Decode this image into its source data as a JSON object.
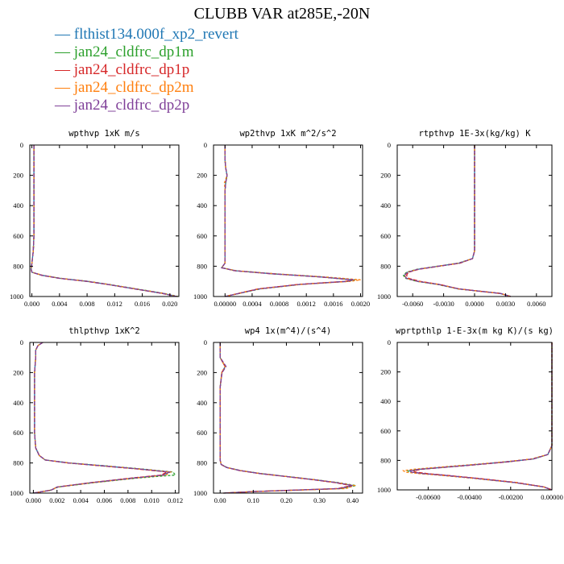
{
  "title": "CLUBB VAR at285E,-20N",
  "legend": [
    {
      "label": "flthist134.000f_xp2_revert",
      "color": "#1f77b4"
    },
    {
      "label": "jan24_cldfrc_dp1m",
      "color": "#2ca02c"
    },
    {
      "label": "jan24_cldfrc_dp1p",
      "color": "#d62728"
    },
    {
      "label": "jan24_cldfrc_dp2m",
      "color": "#ff7f0e"
    },
    {
      "label": "jan24_cldfrc_dp2p",
      "color": "#7f3f98"
    }
  ],
  "chart_data": [
    {
      "type": "line",
      "title": "wpthvp  1xK m/s",
      "xlim": [
        -0.0003,
        0.0213
      ],
      "xticks": [
        0.0,
        0.004,
        0.008,
        0.012,
        0.016,
        0.02
      ],
      "xtick_labels": [
        "0.000",
        "0.004",
        "0.008",
        "0.012",
        "0.016",
        "0.020"
      ],
      "ylim": [
        0,
        1000
      ],
      "yticks": [
        0,
        200,
        400,
        600,
        800,
        1000
      ],
      "y": [
        0,
        100,
        200,
        300,
        400,
        500,
        600,
        700,
        780,
        820,
        840,
        860,
        880,
        900,
        920,
        950,
        980,
        1000
      ],
      "series": [
        {
          "color": "#1f77b4",
          "x": [
            0.0003,
            0.0003,
            0.0003,
            0.0003,
            0.0003,
            0.0003,
            0.0003,
            0.0002,
            0.0,
            -0.0001,
            0.0,
            0.0015,
            0.004,
            0.008,
            0.011,
            0.015,
            0.019,
            0.021
          ]
        },
        {
          "color": "#2ca02c",
          "x": [
            0.0003,
            0.0003,
            0.0003,
            0.0003,
            0.0003,
            0.0003,
            0.0003,
            0.0002,
            0.0,
            -0.0001,
            0.0,
            0.0015,
            0.0042,
            0.0082,
            0.0112,
            0.0152,
            0.0192,
            0.0212
          ]
        },
        {
          "color": "#d62728",
          "x": [
            0.0003,
            0.0003,
            0.0003,
            0.0003,
            0.0003,
            0.0003,
            0.0003,
            0.0002,
            0.0,
            -0.0001,
            0.0,
            0.0014,
            0.0039,
            0.0079,
            0.0109,
            0.0149,
            0.0189,
            0.0209
          ]
        },
        {
          "color": "#ff7f0e",
          "x": [
            0.0003,
            0.0003,
            0.0003,
            0.0003,
            0.0003,
            0.0003,
            0.0003,
            0.0002,
            0.0,
            -0.0001,
            0.0,
            0.0016,
            0.0041,
            0.0081,
            0.0111,
            0.0151,
            0.0191,
            0.0211
          ]
        },
        {
          "color": "#7f3f98",
          "x": [
            0.0003,
            0.0003,
            0.0003,
            0.0003,
            0.0003,
            0.0003,
            0.0003,
            0.0002,
            0.0,
            -0.0001,
            0.0,
            0.0015,
            0.004,
            0.008,
            0.011,
            0.015,
            0.019,
            0.021
          ]
        }
      ]
    },
    {
      "type": "line",
      "title": "wp2thvp  1xK m^2/s^2",
      "xlim": [
        -0.00017,
        0.00203
      ],
      "xticks": [
        0.0,
        0.0004,
        0.0008,
        0.0012,
        0.0016,
        0.002
      ],
      "xtick_labels": [
        "0.00000",
        "0.0004",
        "0.0008",
        "0.0012",
        "0.0016",
        "0.0020"
      ],
      "ylim": [
        0,
        1000
      ],
      "yticks": [
        0,
        200,
        400,
        600,
        800,
        1000
      ],
      "y": [
        0,
        100,
        150,
        200,
        250,
        300,
        400,
        500,
        600,
        700,
        780,
        810,
        830,
        850,
        870,
        890,
        900,
        920,
        950,
        1000
      ],
      "series": [
        {
          "color": "#1f77b4",
          "x": [
            0.0,
            0.0,
            1e-05,
            3e-05,
            1e-05,
            0.0,
            0.0,
            0.0,
            0.0,
            0.0,
            0.0,
            -5e-05,
            0.00015,
            0.0007,
            0.0014,
            0.0019,
            0.0018,
            0.0011,
            0.0005,
            0.0
          ]
        },
        {
          "color": "#2ca02c",
          "x": [
            0.0,
            0.0,
            1e-05,
            3e-05,
            1e-05,
            0.0,
            0.0,
            0.0,
            0.0,
            0.0,
            0.0,
            -5e-05,
            0.00016,
            0.00072,
            0.00142,
            0.00192,
            0.00182,
            0.00112,
            0.00052,
            0.0
          ]
        },
        {
          "color": "#d62728",
          "x": [
            0.0,
            0.0,
            1e-05,
            3e-05,
            1e-05,
            0.0,
            0.0,
            0.0,
            0.0,
            0.0,
            0.0,
            -5e-05,
            0.00014,
            0.00068,
            0.00138,
            0.00188,
            0.00178,
            0.00108,
            0.00048,
            0.0
          ]
        },
        {
          "color": "#ff7f0e",
          "x": [
            0.0,
            0.0,
            1e-05,
            3e-05,
            -1e-05,
            0.0,
            0.0,
            0.0,
            0.0,
            0.0,
            0.0,
            -5e-05,
            0.00017,
            0.00074,
            0.00146,
            0.002,
            0.00185,
            0.00112,
            0.0005,
            0.0
          ]
        },
        {
          "color": "#7f3f98",
          "x": [
            0.0,
            0.0,
            1e-05,
            3e-05,
            1e-05,
            0.0,
            0.0,
            0.0,
            0.0,
            0.0,
            0.0,
            -5e-05,
            0.00015,
            0.0007,
            0.0014,
            0.0019,
            0.0018,
            0.0011,
            0.0005,
            0.0
          ]
        }
      ]
    },
    {
      "type": "line",
      "title": "rtpthvp  1E-3x(kg/kg) K",
      "xlim": [
        -0.0075,
        0.0075
      ],
      "xticks": [
        -0.006,
        -0.003,
        0.0,
        0.003,
        0.006
      ],
      "xtick_labels": [
        "-0.0060",
        "-0.0030",
        "0.0000",
        "0.0030",
        "0.0060"
      ],
      "ylim": [
        0,
        1000
      ],
      "yticks": [
        0,
        200,
        400,
        600,
        800,
        1000
      ],
      "y": [
        0,
        200,
        400,
        600,
        700,
        750,
        780,
        800,
        820,
        840,
        860,
        880,
        900,
        920,
        950,
        980,
        1000
      ],
      "series": [
        {
          "color": "#1f77b4",
          "x": [
            0.0,
            0.0,
            0.0,
            0.0,
            0.0,
            -0.0002,
            -0.0015,
            -0.0035,
            -0.0055,
            -0.0065,
            -0.0068,
            -0.0066,
            -0.0055,
            -0.0035,
            -0.0015,
            0.0025,
            0.0035
          ]
        },
        {
          "color": "#2ca02c",
          "x": [
            0.0,
            0.0,
            0.0,
            0.0,
            0.0,
            -0.0002,
            -0.0016,
            -0.0036,
            -0.0056,
            -0.0066,
            -0.0069,
            -0.0067,
            -0.0056,
            -0.0036,
            -0.0016,
            0.0025,
            0.0035
          ]
        },
        {
          "color": "#d62728",
          "x": [
            0.0,
            0.0,
            0.0,
            0.0,
            0.0,
            -0.0002,
            -0.0014,
            -0.0034,
            -0.0054,
            -0.0064,
            -0.0066,
            -0.0064,
            -0.0053,
            -0.0034,
            -0.0015,
            0.0025,
            0.0035
          ]
        },
        {
          "color": "#ff7f0e",
          "x": [
            0.0,
            0.0,
            0.0,
            0.0,
            0.0,
            -0.0002,
            -0.0015,
            -0.0035,
            -0.0055,
            -0.0065,
            -0.0068,
            -0.0066,
            -0.0055,
            -0.0035,
            -0.0015,
            0.0025,
            0.0035
          ]
        },
        {
          "color": "#7f3f98",
          "x": [
            0.0,
            0.0,
            0.0,
            0.0,
            0.0,
            -0.0002,
            -0.0015,
            -0.0035,
            -0.0055,
            -0.0065,
            -0.0068,
            -0.0066,
            -0.0055,
            -0.0035,
            -0.0015,
            0.0025,
            0.0035
          ]
        }
      ]
    },
    {
      "type": "line",
      "title": "thlpthvp  1xK^2",
      "xlim": [
        -0.0003,
        0.0123
      ],
      "xticks": [
        0.0,
        0.002,
        0.004,
        0.006,
        0.008,
        0.01,
        0.012
      ],
      "xtick_labels": [
        "0.000",
        "0.002",
        "0.004",
        "0.006",
        "0.008",
        "0.010",
        "0.012"
      ],
      "ylim": [
        0,
        1000
      ],
      "yticks": [
        0,
        200,
        400,
        600,
        800,
        1000
      ],
      "y": [
        0,
        20,
        50,
        100,
        200,
        300,
        400,
        500,
        600,
        700,
        750,
        780,
        800,
        820,
        840,
        860,
        880,
        900,
        930,
        960,
        980,
        1000
      ],
      "series": [
        {
          "color": "#1f77b4",
          "x": [
            0.0008,
            0.0004,
            0.0002,
            0.0002,
            0.0001,
            0.0001,
            0.0001,
            0.0001,
            0.0001,
            0.0002,
            0.0005,
            0.001,
            0.003,
            0.006,
            0.009,
            0.0115,
            0.011,
            0.0085,
            0.005,
            0.002,
            0.0015,
            0.0
          ]
        },
        {
          "color": "#2ca02c",
          "x": [
            0.0008,
            0.0004,
            0.0002,
            0.0002,
            0.0001,
            0.0001,
            0.0001,
            0.0001,
            0.0001,
            0.0002,
            0.0005,
            0.001,
            0.0031,
            0.0062,
            0.0092,
            0.0118,
            0.012,
            0.0088,
            0.0052,
            0.0021,
            0.0015,
            0.0
          ]
        },
        {
          "color": "#d62728",
          "x": [
            0.0008,
            0.0004,
            0.0002,
            0.0002,
            0.0001,
            0.0001,
            0.0001,
            0.0001,
            0.0001,
            0.0002,
            0.0005,
            0.001,
            0.0029,
            0.0058,
            0.0088,
            0.0113,
            0.0108,
            0.0083,
            0.0049,
            0.002,
            0.0015,
            0.0
          ]
        },
        {
          "color": "#ff7f0e",
          "x": [
            0.0008,
            0.0004,
            0.0002,
            0.0002,
            0.0001,
            0.0001,
            0.0001,
            0.0001,
            0.0001,
            0.0002,
            0.0005,
            0.001,
            0.003,
            0.006,
            0.009,
            0.0116,
            0.0112,
            0.0086,
            0.0051,
            0.002,
            0.0015,
            0.0
          ]
        },
        {
          "color": "#7f3f98",
          "x": [
            0.0008,
            0.0004,
            0.0002,
            0.0002,
            0.0001,
            0.0001,
            0.0001,
            0.0001,
            0.0001,
            0.0002,
            0.0005,
            0.001,
            0.003,
            0.006,
            0.009,
            0.0115,
            0.011,
            0.0085,
            0.005,
            0.002,
            0.0015,
            0.0
          ]
        }
      ]
    },
    {
      "type": "line",
      "title": "wp4  1x(m^4)/(s^4)",
      "xlim": [
        -0.02,
        0.43
      ],
      "xticks": [
        0.0,
        0.1,
        0.2,
        0.3,
        0.4
      ],
      "xtick_labels": [
        "0.00",
        "0.10",
        "0.20",
        "0.30",
        "0.40"
      ],
      "ylim": [
        0,
        1000
      ],
      "yticks": [
        0,
        200,
        400,
        600,
        800,
        1000
      ],
      "y": [
        0,
        100,
        140,
        160,
        200,
        300,
        400,
        500,
        600,
        700,
        780,
        810,
        830,
        850,
        870,
        890,
        910,
        930,
        950,
        970,
        990,
        1000
      ],
      "series": [
        {
          "color": "#1f77b4",
          "x": [
            0.0,
            0.0,
            0.01,
            0.015,
            0.005,
            0.0,
            0.0,
            0.0,
            0.0,
            0.0,
            0.0,
            0.003,
            0.02,
            0.06,
            0.12,
            0.2,
            0.28,
            0.35,
            0.4,
            0.36,
            0.1,
            0.01
          ]
        },
        {
          "color": "#2ca02c",
          "x": [
            0.0,
            0.0,
            0.01,
            0.015,
            0.005,
            0.0,
            0.0,
            0.0,
            0.0,
            0.0,
            0.0,
            0.003,
            0.021,
            0.062,
            0.122,
            0.203,
            0.283,
            0.355,
            0.41,
            0.37,
            0.1,
            0.01
          ]
        },
        {
          "color": "#d62728",
          "x": [
            0.0,
            0.0,
            0.01,
            0.015,
            0.005,
            0.0,
            0.0,
            0.0,
            0.0,
            0.0,
            0.0,
            0.003,
            0.019,
            0.058,
            0.118,
            0.197,
            0.276,
            0.345,
            0.395,
            0.355,
            0.1,
            0.01
          ]
        },
        {
          "color": "#ff7f0e",
          "x": [
            0.0,
            0.0,
            0.01,
            0.015,
            0.005,
            0.0,
            0.0,
            0.0,
            0.0,
            0.0,
            0.0,
            0.003,
            0.02,
            0.061,
            0.121,
            0.201,
            0.281,
            0.352,
            0.405,
            0.38,
            0.1,
            0.01
          ]
        },
        {
          "color": "#7f3f98",
          "x": [
            0.0,
            0.0,
            0.012,
            0.018,
            0.006,
            0.0,
            0.0,
            0.0,
            0.0,
            0.0,
            0.0,
            0.003,
            0.02,
            0.06,
            0.12,
            0.2,
            0.28,
            0.35,
            0.4,
            0.36,
            0.1,
            0.01
          ]
        }
      ]
    },
    {
      "type": "line",
      "title": "wprtpthlp  1-E-3x(m kg K)/(s kg)",
      "xlim": [
        -0.0075,
        0.0
      ],
      "xticks": [
        -0.006,
        -0.004,
        -0.002,
        0.0
      ],
      "xtick_labels": [
        "-0.00600",
        "-0.00400",
        "-0.00200",
        "0.00000"
      ],
      "ylim": [
        0,
        1000
      ],
      "yticks": [
        0,
        200,
        400,
        600,
        800,
        1000
      ],
      "y": [
        0,
        200,
        400,
        600,
        700,
        760,
        790,
        810,
        830,
        850,
        860,
        870,
        880,
        890,
        900,
        920,
        950,
        980,
        1000
      ],
      "series": [
        {
          "color": "#1f77b4",
          "x": [
            0.0,
            0.0,
            0.0,
            0.0,
            0.0,
            -0.0002,
            -0.0009,
            -0.0022,
            -0.0038,
            -0.0055,
            -0.0064,
            -0.0069,
            -0.0068,
            -0.0062,
            -0.0053,
            -0.0038,
            -0.0018,
            -0.0004,
            0.0
          ]
        },
        {
          "color": "#2ca02c",
          "x": [
            0.0,
            0.0,
            0.0,
            0.0,
            0.0,
            -0.0002,
            -0.0009,
            -0.0022,
            -0.0039,
            -0.0056,
            -0.0065,
            -0.007,
            -0.0069,
            -0.0063,
            -0.0054,
            -0.0039,
            -0.0018,
            -0.0004,
            0.0
          ]
        },
        {
          "color": "#d62728",
          "x": [
            0.0,
            0.0,
            0.0,
            0.0,
            0.0,
            -0.0002,
            -0.0009,
            -0.0021,
            -0.0037,
            -0.0054,
            -0.0063,
            -0.0067,
            -0.0066,
            -0.006,
            -0.0052,
            -0.0037,
            -0.0017,
            -0.0004,
            0.0
          ]
        },
        {
          "color": "#ff7f0e",
          "x": [
            0.0,
            0.0,
            0.0,
            0.0,
            0.0,
            -0.0002,
            -0.001,
            -0.0023,
            -0.004,
            -0.0058,
            -0.0067,
            -0.0072,
            -0.0071,
            -0.0064,
            -0.0055,
            -0.0039,
            -0.0018,
            -0.0004,
            0.0
          ]
        },
        {
          "color": "#7f3f98",
          "x": [
            0.0,
            0.0,
            0.0,
            0.0,
            0.0,
            -0.0002,
            -0.0009,
            -0.0022,
            -0.0038,
            -0.0055,
            -0.0064,
            -0.0069,
            -0.0068,
            -0.0062,
            -0.0053,
            -0.0038,
            -0.0018,
            -0.0004,
            0.0
          ]
        }
      ]
    }
  ]
}
